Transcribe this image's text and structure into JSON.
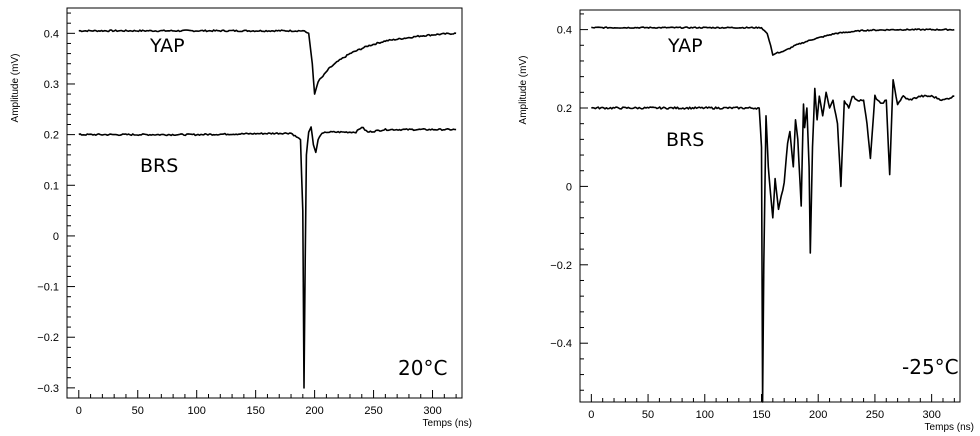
{
  "chart_data": [
    {
      "type": "line",
      "xlabel": "Temps (ns)",
      "ylabel": "Amplitude (mV)",
      "annotation": "20°C",
      "xlim": [
        -10,
        325
      ],
      "ylim": [
        -0.32,
        0.45
      ],
      "xticks": [
        0,
        50,
        100,
        150,
        200,
        250,
        300
      ],
      "yticks": [
        -0.3,
        -0.2,
        -0.1,
        0,
        0.1,
        0.2,
        0.3,
        0.4
      ],
      "ytick_labels": [
        "−0.3",
        "−0.2",
        "−0.1",
        "0",
        "0.1",
        "0.2",
        "0.3",
        "0.4"
      ],
      "series": [
        {
          "name": "YAP",
          "x": [
            0,
            100,
            190,
            195,
            198,
            200,
            203,
            207,
            212,
            220,
            230,
            245,
            260,
            275,
            290,
            305,
            320
          ],
          "y": [
            0.405,
            0.405,
            0.405,
            0.4,
            0.34,
            0.28,
            0.305,
            0.315,
            0.33,
            0.345,
            0.36,
            0.375,
            0.385,
            0.39,
            0.395,
            0.398,
            0.4
          ]
        },
        {
          "name": "BRS",
          "x": [
            0,
            100,
            180,
            188,
            190,
            191,
            192,
            193,
            195,
            197,
            199,
            201,
            203,
            205,
            210,
            220,
            235,
            240,
            245,
            260,
            290,
            320
          ],
          "y": [
            0.2,
            0.2,
            0.203,
            0.19,
            0.05,
            -0.3,
            -0.05,
            0.16,
            0.205,
            0.215,
            0.18,
            0.165,
            0.19,
            0.2,
            0.205,
            0.205,
            0.205,
            0.215,
            0.205,
            0.21,
            0.21,
            0.21
          ]
        }
      ]
    },
    {
      "type": "line",
      "xlabel": "Temps (ns)",
      "ylabel": "Amplitude (mV)",
      "annotation": "-25°C",
      "xlim": [
        -10,
        325
      ],
      "ylim": [
        -0.55,
        0.45
      ],
      "xticks": [
        0,
        50,
        100,
        150,
        200,
        250,
        300
      ],
      "yticks": [
        -0.4,
        -0.2,
        0,
        0.2,
        0.4
      ],
      "ytick_labels": [
        "−0.4",
        "−0.2",
        "0",
        "0.2",
        "0.4"
      ],
      "series": [
        {
          "name": "YAP",
          "x": [
            0,
            100,
            150,
            155,
            158,
            160,
            163,
            170,
            180,
            195,
            215,
            240,
            270,
            300,
            320
          ],
          "y": [
            0.405,
            0.405,
            0.405,
            0.39,
            0.36,
            0.335,
            0.34,
            0.345,
            0.36,
            0.375,
            0.39,
            0.398,
            0.4,
            0.4,
            0.4
          ],
          "noise": 0.003
        },
        {
          "name": "BRS",
          "x": [
            0,
            100,
            148,
            150,
            151,
            152,
            154,
            156,
            158,
            160,
            162,
            165,
            170,
            173,
            175,
            178,
            180,
            182,
            185,
            187,
            188,
            190,
            192,
            193,
            195,
            197,
            199,
            201,
            204,
            207,
            210,
            213,
            217,
            220,
            223,
            227,
            230,
            235,
            240,
            243,
            246,
            250,
            255,
            260,
            263,
            266,
            270,
            275,
            280,
            290,
            300,
            310,
            320
          ],
          "y": [
            0.2,
            0.2,
            0.2,
            0.1,
            -0.55,
            -0.2,
            0.18,
            0.05,
            -0.02,
            -0.08,
            0.02,
            -0.06,
            0.01,
            0.11,
            0.14,
            0.05,
            0.17,
            0.12,
            -0.05,
            0.21,
            0.15,
            0.2,
            0.05,
            -0.17,
            0.1,
            0.25,
            0.17,
            0.23,
            0.18,
            0.24,
            0.2,
            0.22,
            0.16,
            0.0,
            0.22,
            0.2,
            0.23,
            0.22,
            0.22,
            0.16,
            0.07,
            0.23,
            0.21,
            0.22,
            0.03,
            0.27,
            0.21,
            0.23,
            0.22,
            0.23,
            0.23,
            0.22,
            0.23
          ],
          "noise": 0.005
        }
      ]
    }
  ]
}
